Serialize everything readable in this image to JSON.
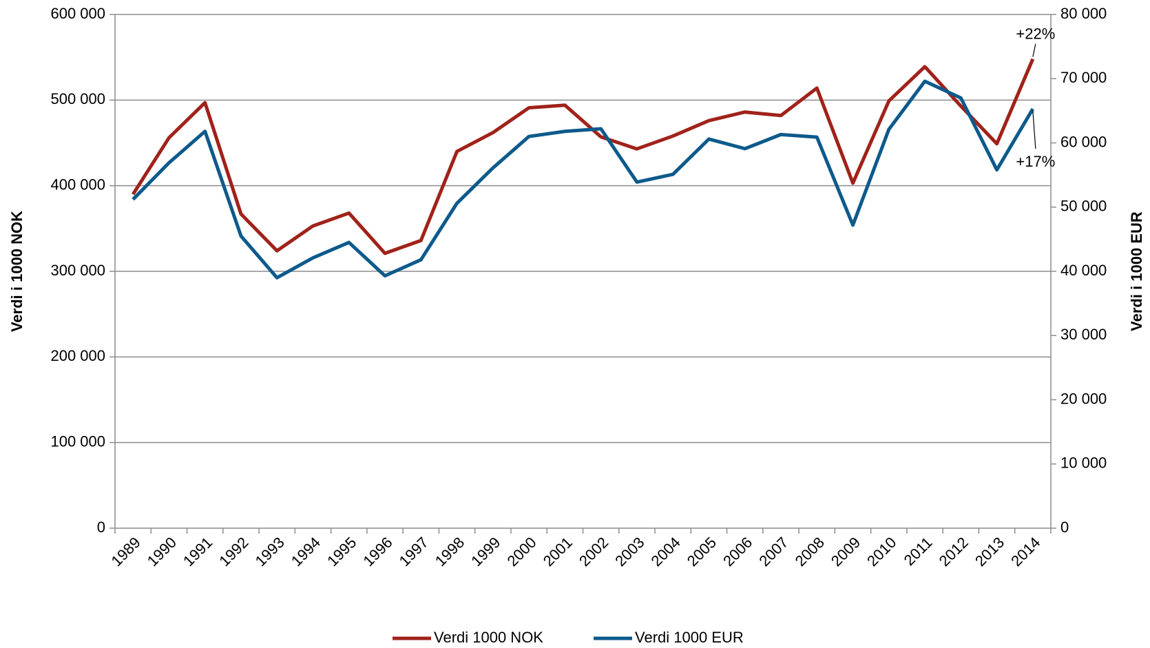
{
  "chart_data": {
    "type": "line",
    "y_label": "Verdi i 1000 NOK",
    "y2_label": "Verdi i 1000 EUR",
    "categories": [
      "1989",
      "1990",
      "1991",
      "1992",
      "1993",
      "1994",
      "1995",
      "1996",
      "1997",
      "1998",
      "1999",
      "2000",
      "2001",
      "2002",
      "2003",
      "2004",
      "2005",
      "2006",
      "2007",
      "2008",
      "2009",
      "2010",
      "2011",
      "2012",
      "2013",
      "2014"
    ],
    "series": [
      {
        "name": "Verdi 1000 NOK",
        "color": "#a0221a",
        "axis": "y",
        "values": [
          390000,
          456000,
          497000,
          367000,
          324000,
          353000,
          368000,
          321000,
          336000,
          440000,
          462000,
          491000,
          494000,
          457000,
          443000,
          458000,
          476000,
          486000,
          482000,
          514000,
          403000,
          499000,
          539000,
          493000,
          449000,
          548000
        ]
      },
      {
        "name": "Verdi 1000 EUR",
        "color": "#0d5a8c",
        "axis": "y2",
        "values": [
          51200,
          56900,
          61800,
          45500,
          39000,
          42100,
          44500,
          39300,
          41800,
          50600,
          56100,
          61000,
          61800,
          62200,
          53900,
          55100,
          60600,
          59100,
          61300,
          60900,
          47200,
          62100,
          69600,
          67000,
          55800,
          65300
        ]
      }
    ],
    "ylim": [
      0,
      600000
    ],
    "yticks": [
      0,
      {
        "value": 100000,
        "label": "100 000"
      },
      {
        "value": 200000,
        "label": "200 000"
      },
      {
        "value": 300000,
        "label": "300 000"
      },
      {
        "value": 400000,
        "label": "400 000"
      },
      {
        "value": 500000,
        "label": "500 000"
      },
      {
        "value": 600000,
        "label": "600 000"
      }
    ],
    "y2lim": [
      0,
      80000
    ],
    "y2ticks": [
      0,
      {
        "value": 10000,
        "label": "10 000"
      },
      {
        "value": 20000,
        "label": "20 000"
      },
      {
        "value": 30000,
        "label": "30 000"
      },
      {
        "value": 40000,
        "label": "40 000"
      },
      {
        "value": 50000,
        "label": "50 000"
      },
      {
        "value": 60000,
        "label": "60 000"
      },
      {
        "value": 70000,
        "label": "70 000"
      },
      {
        "value": 80000,
        "label": "80 000"
      }
    ],
    "grid": true,
    "legend": "bottom",
    "annotations": [
      {
        "text": "+22%",
        "series": 0
      },
      {
        "text": "+17%",
        "series": 1
      }
    ]
  }
}
